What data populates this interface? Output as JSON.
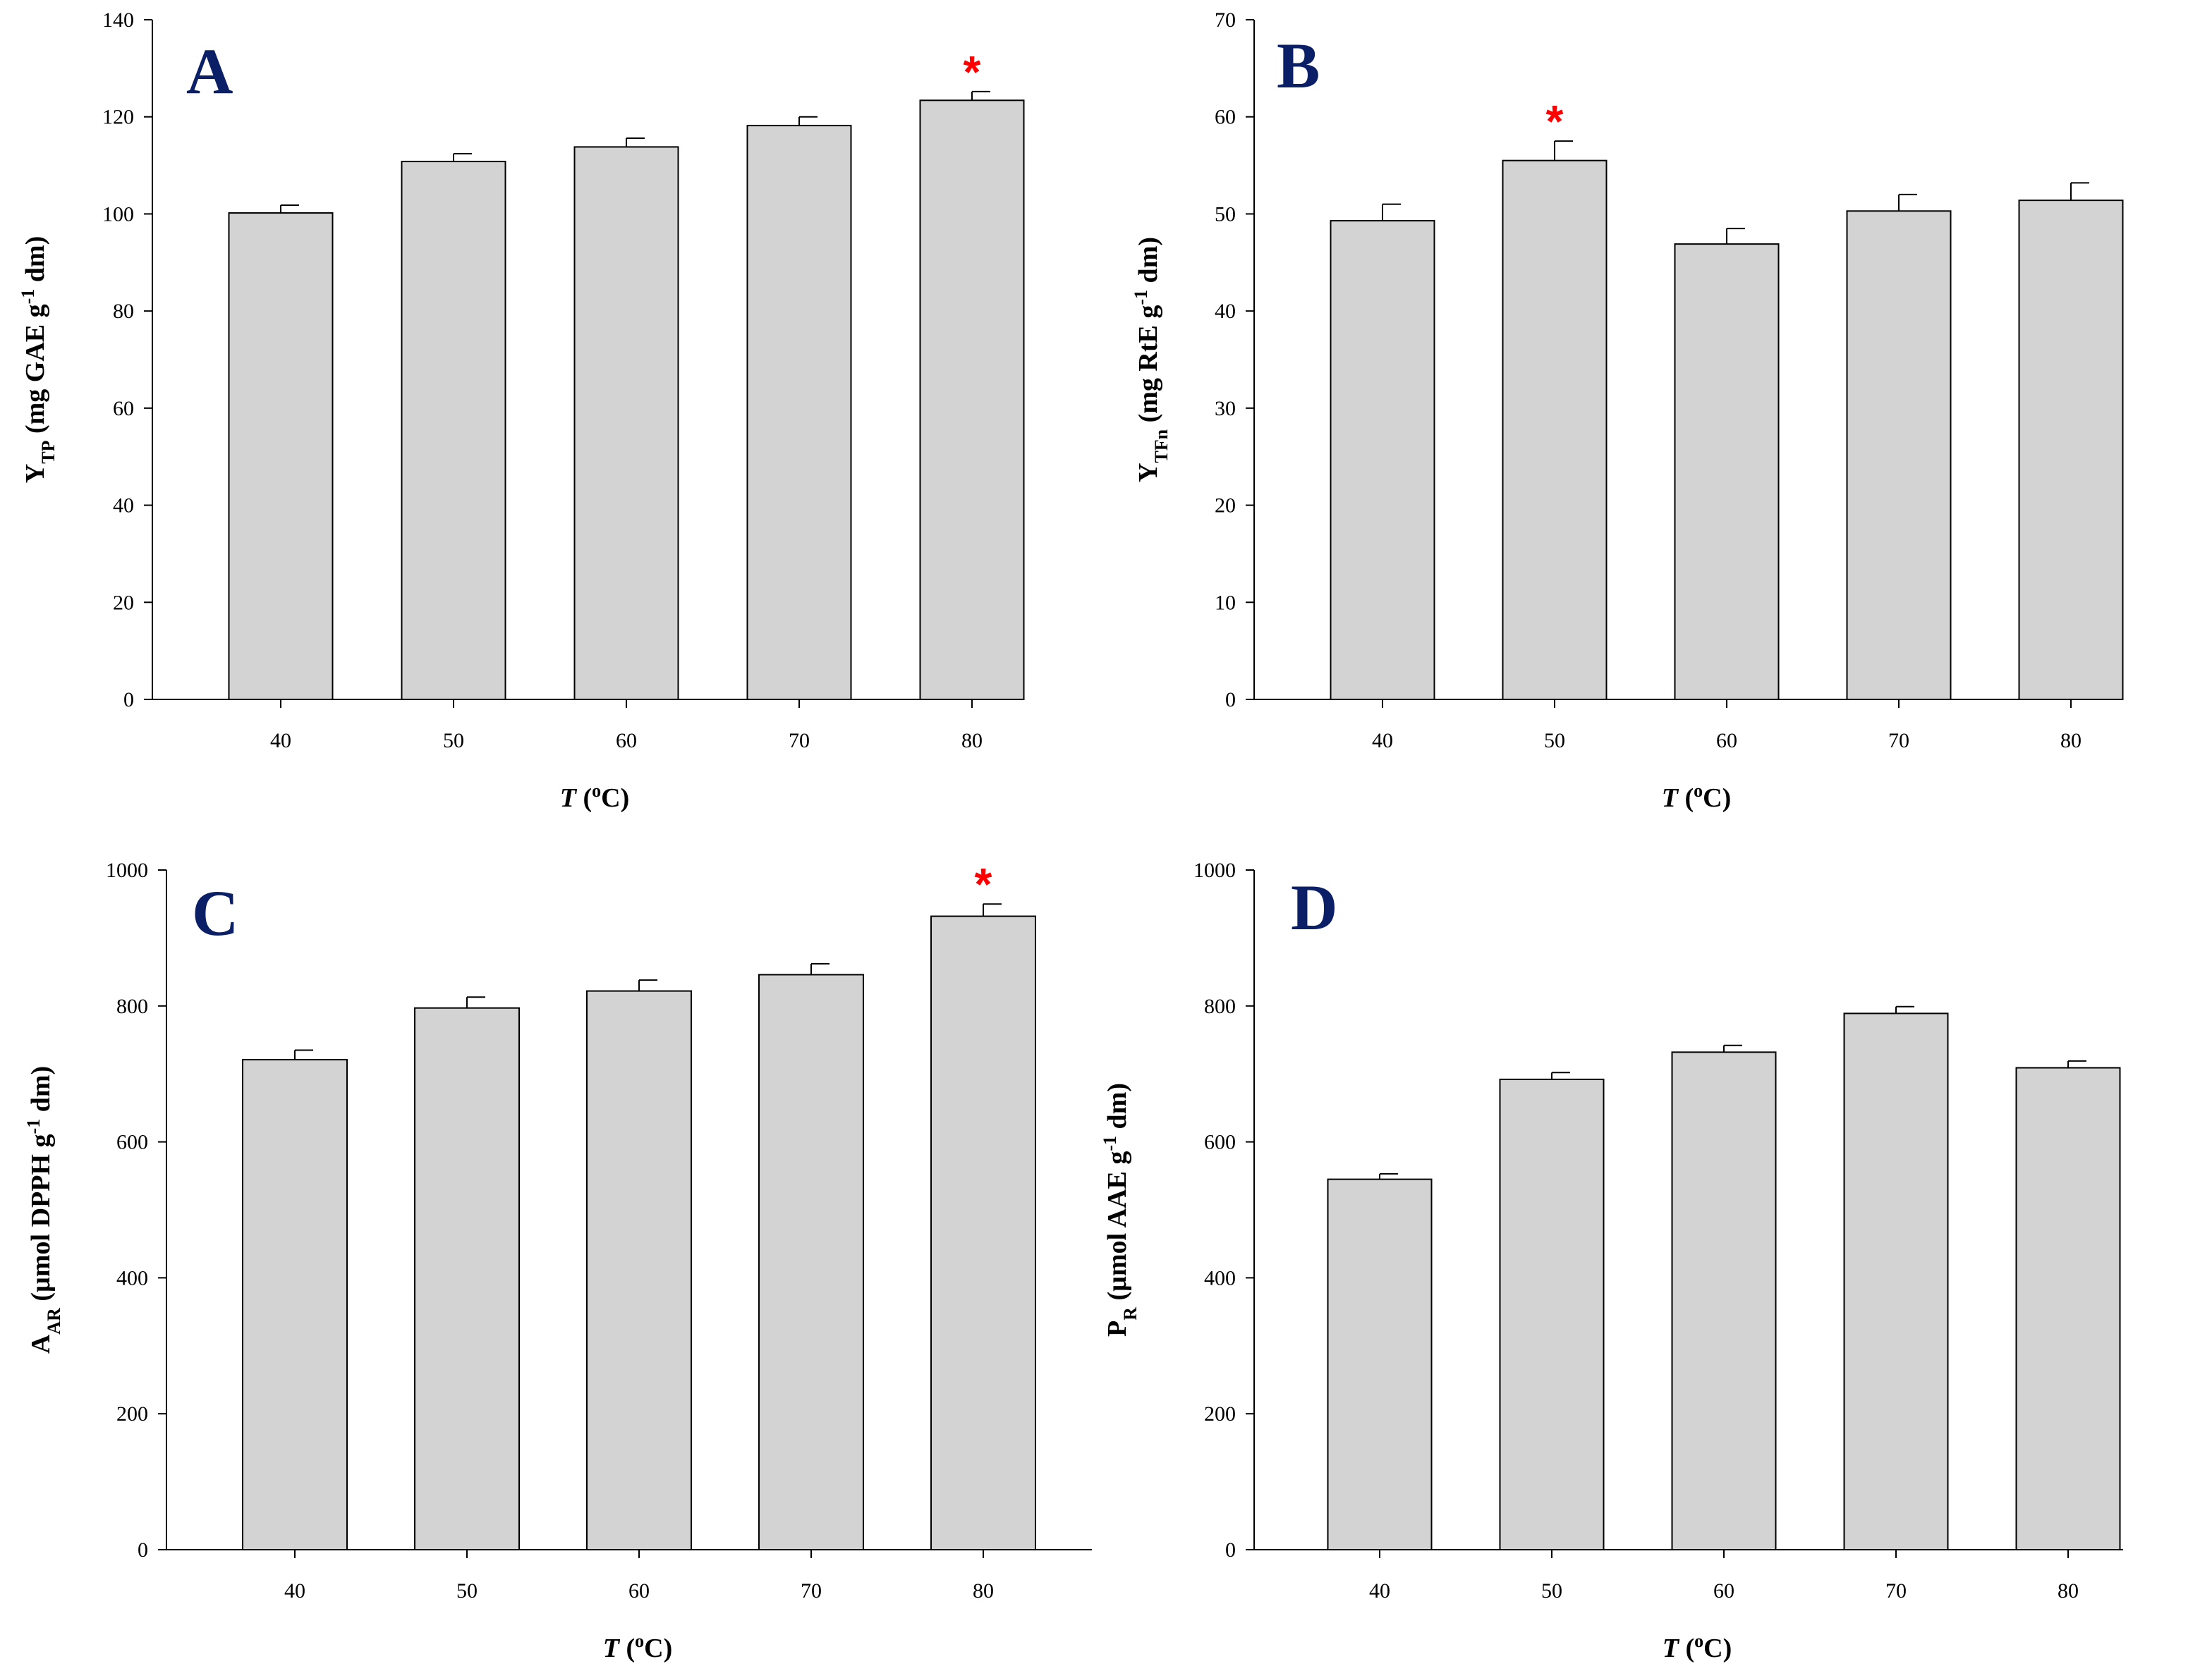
{
  "figure": {
    "colors": {
      "bar_fill": "#d3d3d3",
      "bar_stroke": "#000000",
      "panel_letter": "#0a1f66",
      "significance": "#ff0000"
    }
  },
  "chart_data": [
    {
      "type": "bar",
      "panel": "A",
      "categories": [
        "40",
        "50",
        "60",
        "70",
        "80"
      ],
      "values": [
        100.2,
        110.8,
        113.8,
        118.2,
        123.4
      ],
      "errors": [
        1.6,
        1.6,
        1.8,
        1.8,
        1.8
      ],
      "significant": [
        false,
        false,
        false,
        false,
        true
      ],
      "significance_marker": "*",
      "ylim": [
        0,
        140
      ],
      "yticks": [
        "0",
        "20",
        "40",
        "60",
        "80",
        "100",
        "120",
        "140"
      ],
      "ylabel_main": "Y",
      "ylabel_sub": "TP",
      "ylabel_mid": " (mg GAE g",
      "ylabel_sup": "-1",
      "ylabel_end": " dm)",
      "xlabel_var": "T",
      "xlabel_open": " (",
      "xlabel_sup": "o",
      "xlabel_unit": "C)"
    },
    {
      "type": "bar",
      "panel": "B",
      "categories": [
        "40",
        "50",
        "60",
        "70",
        "80"
      ],
      "values": [
        49.3,
        55.5,
        46.9,
        50.3,
        51.4
      ],
      "errors": [
        1.7,
        2.0,
        1.6,
        1.7,
        1.8
      ],
      "significant": [
        false,
        true,
        false,
        false,
        false
      ],
      "significance_marker": "*",
      "ylim": [
        0,
        70
      ],
      "yticks": [
        "0",
        "10",
        "20",
        "30",
        "40",
        "50",
        "60",
        "70"
      ],
      "ylabel_main": "Y",
      "ylabel_sub": "TFn",
      "ylabel_mid": " (mg RtE g",
      "ylabel_sup": "-1",
      "ylabel_end": " dm)",
      "xlabel_var": "T",
      "xlabel_open": " (",
      "xlabel_sup": "o",
      "xlabel_unit": "C)"
    },
    {
      "type": "bar",
      "panel": "C",
      "categories": [
        "40",
        "50",
        "60",
        "70",
        "80"
      ],
      "values": [
        721,
        797,
        822,
        846,
        932
      ],
      "errors": [
        14,
        16,
        16,
        16,
        18
      ],
      "significant": [
        false,
        false,
        false,
        false,
        true
      ],
      "significance_marker": "*",
      "ylim": [
        0,
        1000
      ],
      "yticks": [
        "0",
        "200",
        "400",
        "600",
        "800",
        "1000"
      ],
      "ylabel_main": "A",
      "ylabel_sub": "AR",
      "ylabel_mid": " (µmol DPPH g",
      "ylabel_sup": "-1",
      "ylabel_end": " dm)",
      "xlabel_var": "T",
      "xlabel_open": " (",
      "xlabel_sup": "o",
      "xlabel_unit": "C)"
    },
    {
      "type": "bar",
      "panel": "D",
      "categories": [
        "40",
        "50",
        "60",
        "70",
        "80"
      ],
      "values": [
        545,
        692,
        732,
        789,
        709
      ],
      "errors": [
        8,
        10,
        10,
        10,
        10
      ],
      "significant": [
        false,
        false,
        false,
        false,
        false
      ],
      "significance_marker": "*",
      "ylim": [
        0,
        1000
      ],
      "yticks": [
        "0",
        "200",
        "400",
        "600",
        "800",
        "1000"
      ],
      "ylabel_main": "P",
      "ylabel_sub": "R",
      "ylabel_mid": " (µmol AAE g",
      "ylabel_sup": "-1",
      "ylabel_end": " dm)",
      "xlabel_var": "T",
      "xlabel_open": " (",
      "xlabel_sup": "o",
      "xlabel_unit": "C)"
    }
  ]
}
